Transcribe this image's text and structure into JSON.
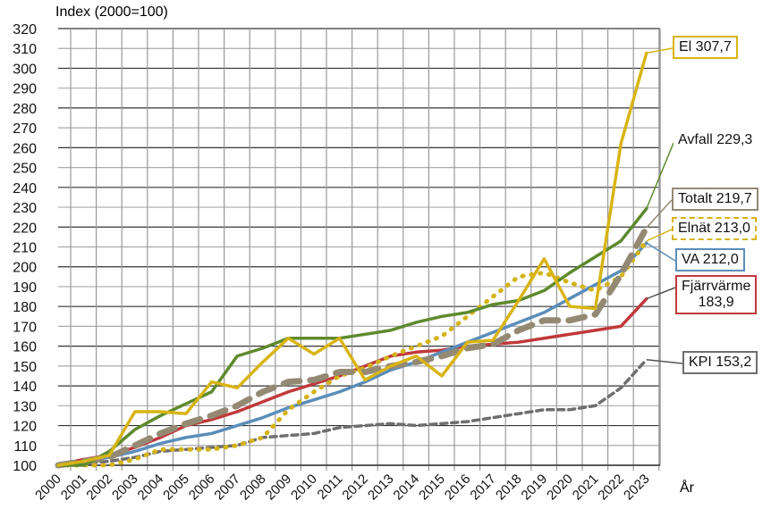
{
  "chart_data": {
    "type": "line",
    "title": "",
    "ylabel": "Index (2000=100)",
    "xlabel": "År",
    "ylim": [
      100,
      320
    ],
    "yticks": [
      100,
      110,
      120,
      130,
      140,
      150,
      160,
      170,
      180,
      190,
      200,
      210,
      220,
      230,
      240,
      250,
      260,
      270,
      280,
      290,
      300,
      310,
      320
    ],
    "x": [
      "2000",
      "2001",
      "2002",
      "2003",
      "2004",
      "2005",
      "2006",
      "2007",
      "2008",
      "2009",
      "2010",
      "2011",
      "2012",
      "2013",
      "2014",
      "2015",
      "2016",
      "2017",
      "2018",
      "2019",
      "2020",
      "2021",
      "2022",
      "2023"
    ],
    "grid": true,
    "series": [
      {
        "name": "KPI",
        "end_label": "KPI 153,2",
        "color": "#6e6e6e",
        "style": "dash",
        "values": [
          100,
          101,
          102,
          104,
          107,
          108,
          109,
          110,
          114,
          115,
          116,
          119,
          120,
          121,
          120,
          121,
          122,
          124,
          126,
          128,
          128,
          130,
          139,
          153.2
        ]
      },
      {
        "name": "Fjärrvärme",
        "end_label": "Fjärrvärme\n183,9",
        "color": "#c0393b",
        "style": "solid",
        "values": [
          100,
          103,
          105,
          109,
          114,
          120,
          123,
          127,
          132,
          137,
          141,
          145,
          150,
          155,
          157,
          158,
          160,
          161,
          162,
          164,
          166,
          168,
          170,
          183.9
        ]
      },
      {
        "name": "VA",
        "end_label": "VA 212,0",
        "color": "#5b8db8",
        "style": "solid",
        "values": [
          100,
          102,
          104,
          107,
          111,
          114,
          116,
          120,
          124,
          129,
          133,
          137,
          142,
          148,
          152,
          157,
          162,
          167,
          172,
          177,
          184,
          191,
          198,
          212.0
        ]
      },
      {
        "name": "Elnät",
        "end_label": "Elnät 213,0",
        "color": "#d4b417",
        "style": "dot",
        "values": [
          100,
          100,
          100,
          103,
          108,
          108,
          108,
          110,
          114,
          128,
          137,
          145,
          149,
          155,
          160,
          165,
          175,
          185,
          195,
          197,
          192,
          188,
          195,
          213.0
        ]
      },
      {
        "name": "Totalt",
        "end_label": "Totalt 219,7",
        "color": "#948a74",
        "style": "bigdash",
        "values": [
          100,
          102,
          104,
          110,
          116,
          121,
          125,
          130,
          137,
          142,
          143,
          147,
          147,
          150,
          152,
          155,
          159,
          161,
          168,
          173,
          173,
          176,
          196,
          219.7
        ]
      },
      {
        "name": "Avfall",
        "end_label": "Avfall 229,3",
        "color": "#5e8a2e",
        "style": "solid",
        "values": [
          100,
          100,
          107,
          118,
          125,
          131,
          137,
          155,
          159,
          164,
          164,
          164,
          166,
          168,
          172,
          175,
          177,
          181,
          183,
          188,
          197,
          205,
          213,
          229.3
        ]
      },
      {
        "name": "El",
        "end_label": "El 307,7",
        "color": "#d8b414",
        "style": "solid",
        "values": [
          100,
          102,
          105,
          127,
          127,
          126,
          142,
          139,
          152,
          164,
          156,
          164,
          143,
          150,
          155,
          145,
          162,
          163,
          183,
          204,
          180,
          179,
          262,
          307.7
        ]
      }
    ]
  }
}
